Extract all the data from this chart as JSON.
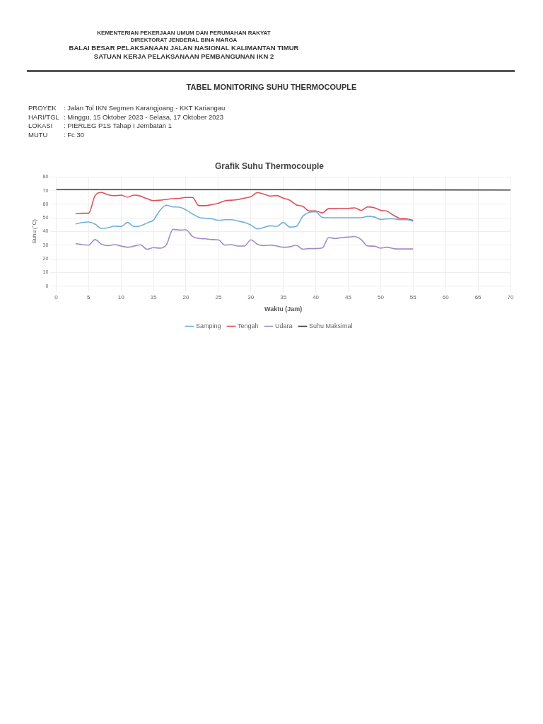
{
  "chart_data": {
    "type": "line",
    "title": "Grafik Suhu Thermocouple",
    "xlabel": "Waktu (Jam)",
    "ylabel": "Suhu (˚C)",
    "annotations": [
      "KEMENTERIAN PEKERJAAN UMUM DAN PERUMAHAN RAKYAT",
      "DIREKTORAT JENDERAL BINA MARGA",
      "BALAI BESAR PELAKSANAAN JALAN NASIONAL KALIMANTAN TIMUR",
      "SATUAN KERJA PELAKSANAAN PEMBANGUNAN IKN 2",
      "TABEL MONITORING SUHU THERMOCOUPLE",
      "PROYEK\t: Jalan Tol IKN Segmen Karangjoang - KKT Kariangau",
      "HARI/TGL\t: Minggu, 15 Oktober 2023 - Selasa, 17 Oktober 2023",
      "LOKASI\t: PIERLEG P1S Tahap I Jembatan 1",
      "MUTU\t: Fc 30"
    ],
    "x": [
      3,
      4,
      5,
      6,
      7,
      8,
      9,
      10,
      11,
      12,
      13,
      14,
      15,
      16,
      17,
      18,
      19,
      20,
      21,
      22,
      23,
      24,
      25,
      26,
      27,
      28,
      29,
      30,
      31,
      32,
      33,
      34,
      35,
      36,
      37,
      38,
      39,
      40,
      41,
      42,
      43,
      44,
      45,
      46,
      47,
      48,
      49,
      50,
      51,
      52,
      53,
      54,
      55
    ],
    "series": [
      {
        "name": "Samping",
        "color": "#6fb1d6",
        "values": [
          45.6,
          46.6,
          47,
          45.4,
          42.3,
          42.7,
          44,
          43.7,
          46.7,
          43.7,
          44.2,
          46.3,
          48.5,
          55.6,
          59.3,
          58.1,
          57.9,
          55.9,
          53,
          50.4,
          49.7,
          49.3,
          48.2,
          48.7,
          48.7,
          47.8,
          46.7,
          44.8,
          42,
          43,
          44.2,
          43.8,
          46.7,
          43.3,
          43.8,
          51.2,
          54.1,
          54.6,
          50.4,
          50.1,
          50.1,
          50.1,
          50.1,
          50.1,
          50.1,
          51.2,
          50.7,
          48.9,
          49.3,
          49.3,
          48.7,
          48.7,
          47.5
        ]
      },
      {
        "name": "Tengah",
        "color": "#e0505a",
        "values": [
          53.1,
          53.4,
          53.4,
          66.4,
          68.7,
          67,
          66.3,
          66.7,
          65.3,
          66.7,
          66,
          64.1,
          62.7,
          63,
          63.6,
          64.1,
          64.4,
          65,
          65,
          59,
          59,
          59.8,
          60.8,
          62.6,
          63,
          63.5,
          64.5,
          65.6,
          68.5,
          67.5,
          66,
          66.4,
          64.5,
          63,
          59.6,
          58.5,
          55.2,
          55.2,
          53.7,
          56.8,
          56.8,
          57,
          57,
          57.4,
          55.6,
          58.1,
          57.5,
          55.6,
          54.9,
          51.9,
          49.6,
          49.3,
          48.2
        ]
      },
      {
        "name": "Udara",
        "color": "#a08cc8",
        "values": [
          31.2,
          30.4,
          30,
          34.1,
          30.7,
          29.7,
          30.4,
          29.4,
          28.5,
          29.3,
          30.3,
          27,
          28.2,
          27.8,
          30.4,
          41.6,
          41.1,
          41.3,
          36.4,
          34.9,
          34.7,
          34.1,
          33.9,
          30.1,
          30.4,
          29.4,
          29.4,
          33.9,
          30.7,
          29.7,
          30.1,
          29.4,
          28.5,
          28.8,
          30,
          27,
          27.5,
          27.5,
          27.9,
          35.6,
          34.9,
          35.6,
          35.9,
          36.4,
          34.1,
          29.4,
          29.3,
          27.8,
          28.5,
          27.5,
          27.2,
          27.2,
          27.2
        ]
      },
      {
        "name": "Suhu Maksimal",
        "color": "#3a3a3a",
        "x": [
          0,
          70
        ],
        "values": [
          71,
          70.5
        ]
      }
    ],
    "xlim": [
      0,
      70
    ],
    "xticks": [
      0,
      5,
      10,
      15,
      20,
      25,
      30,
      35,
      40,
      45,
      50,
      55,
      60,
      65,
      70
    ],
    "ylim": [
      0,
      80
    ],
    "yticks": [
      0,
      10,
      20,
      30,
      40,
      50,
      60,
      70,
      80
    ],
    "grid": true,
    "legend": "bottom",
    "marker": "none",
    "line_style": "solid"
  }
}
